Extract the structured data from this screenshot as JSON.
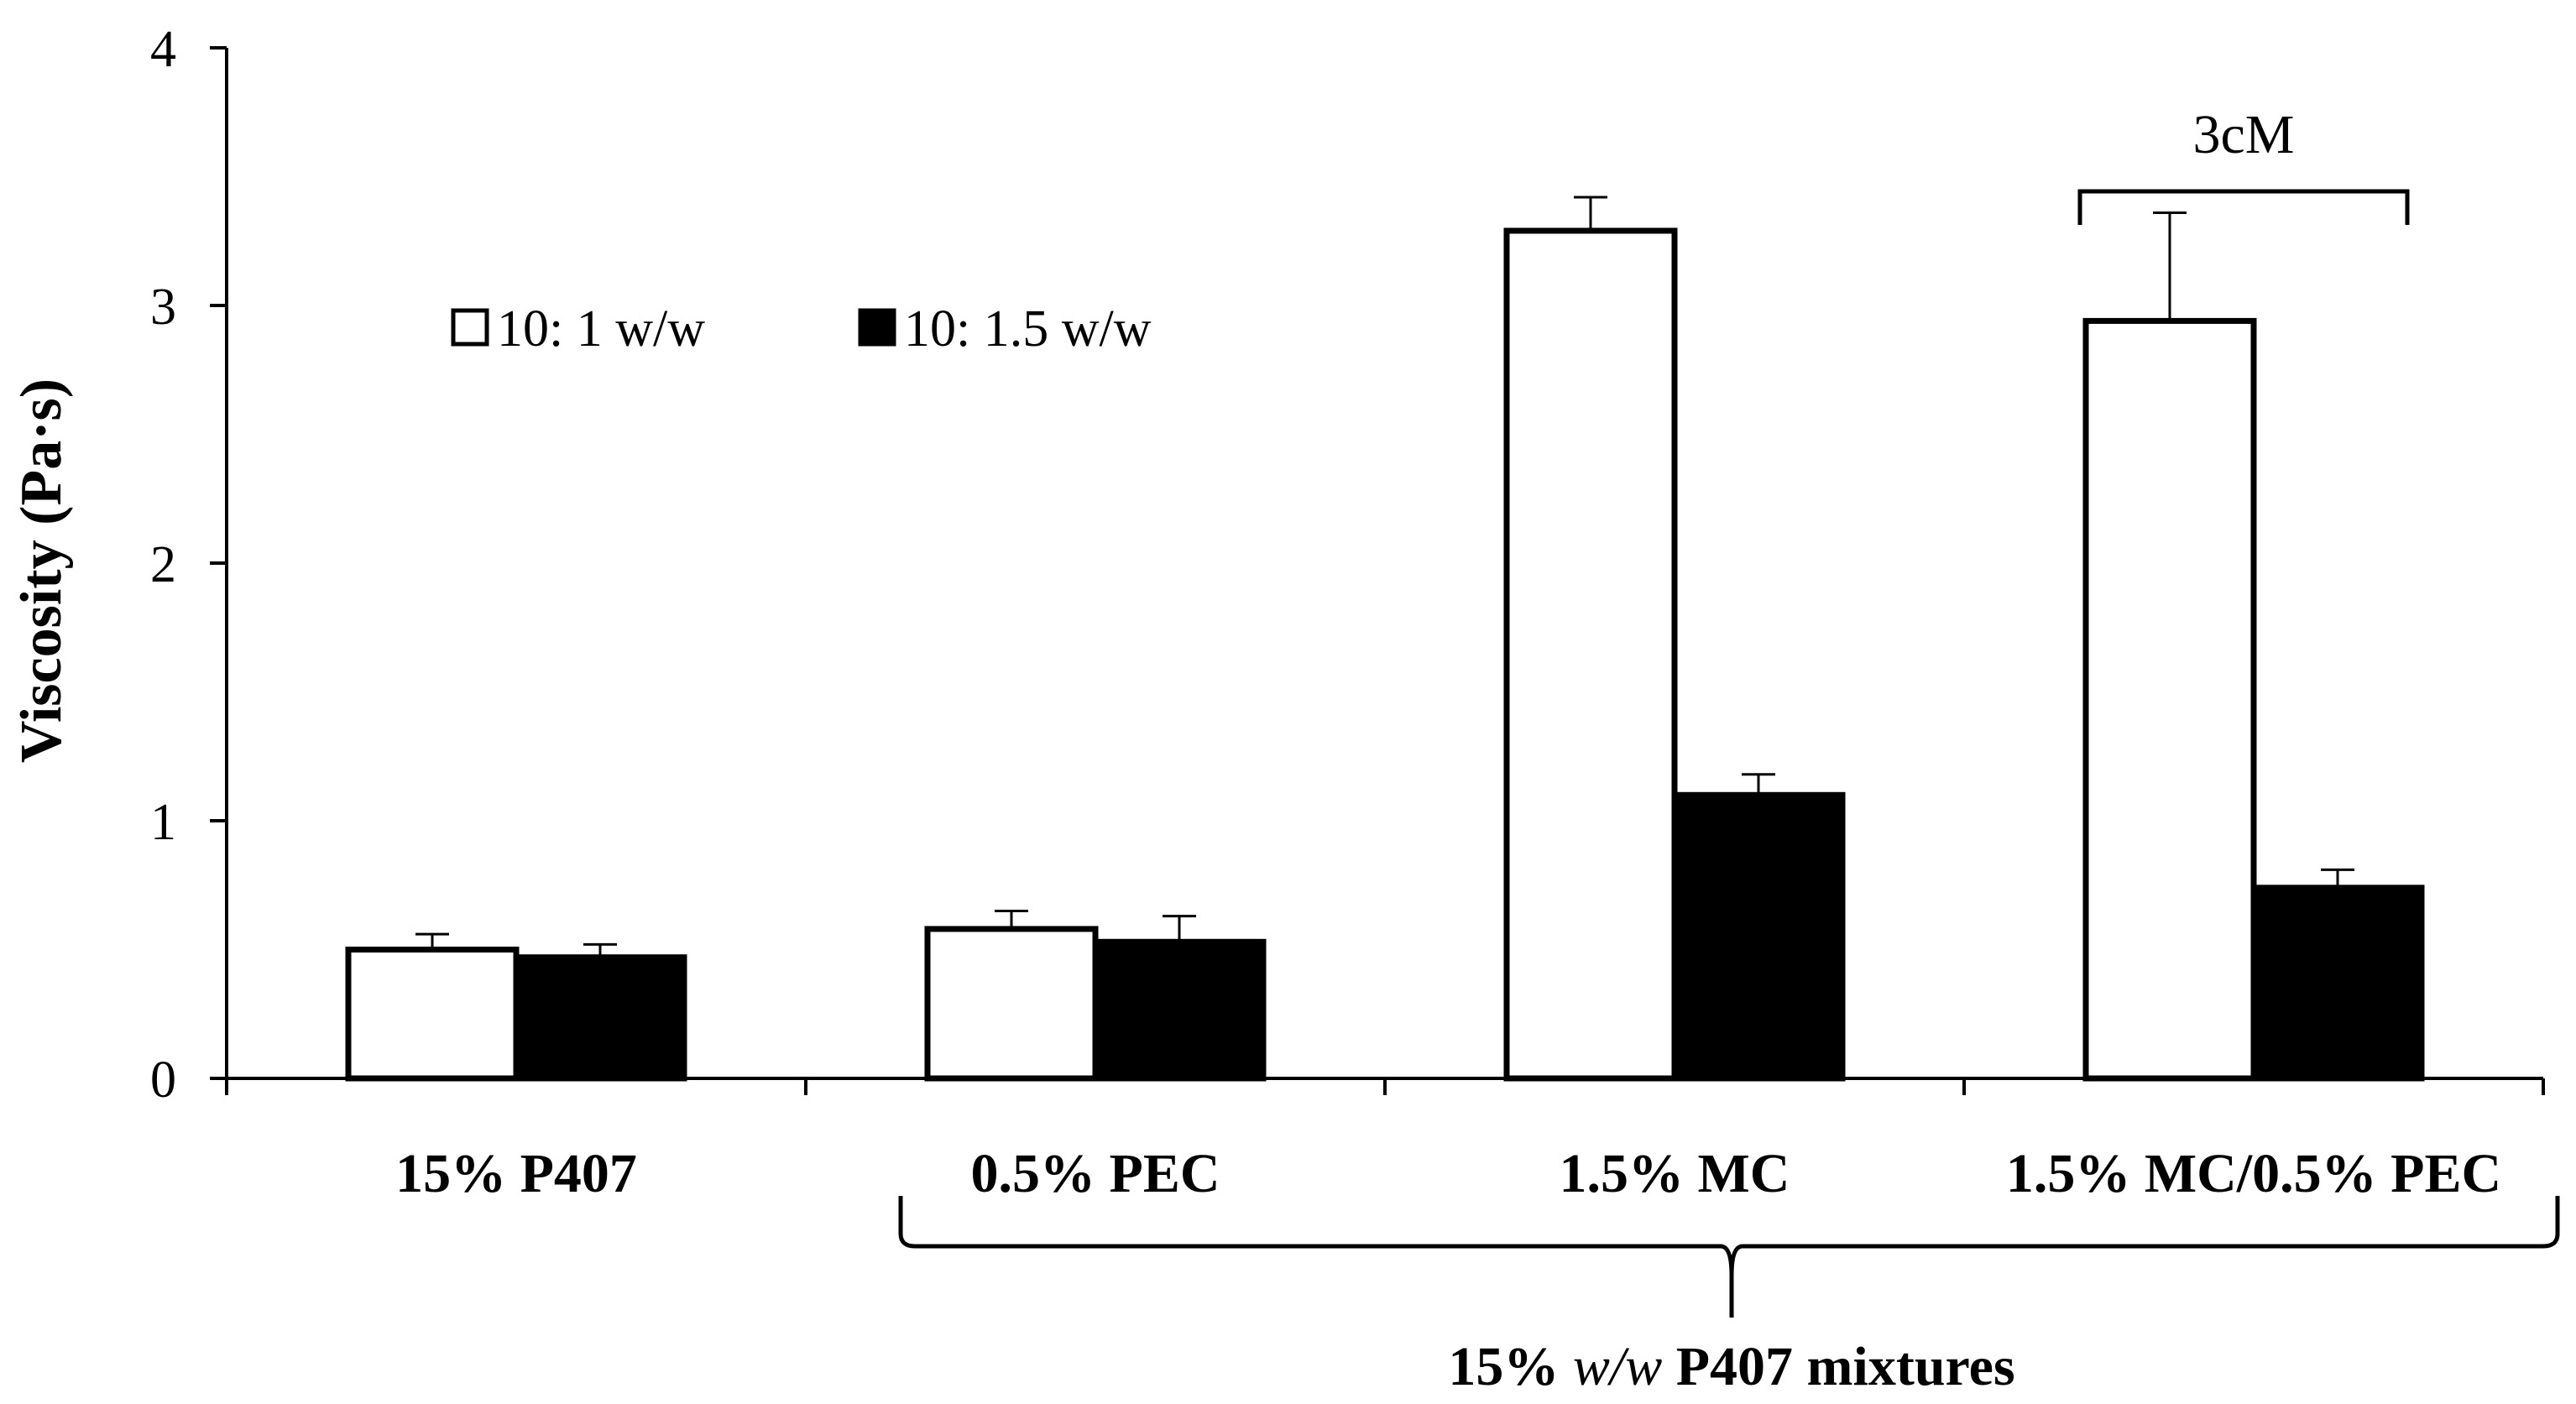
{
  "chart_data": {
    "type": "bar",
    "title": "",
    "xlabel": "",
    "ylabel": "Viscosity (Pa·s)",
    "ylim": [
      0,
      4
    ],
    "yticks": [
      "0",
      "1",
      "2",
      "3",
      "4"
    ],
    "grid": false,
    "legend_position": "top-left",
    "categories": [
      "15% P407",
      "0.5% PEC",
      "1.5% MC",
      "1.5% MC/0.5% PEC"
    ],
    "series": [
      {
        "name": "10: 1 w/w",
        "color": "#ffffff",
        "values": [
          0.5,
          0.58,
          3.29,
          2.94
        ],
        "errors": [
          0.06,
          0.07,
          0.13,
          0.42
        ]
      },
      {
        "name": "10: 1.5 w/w",
        "color": "#000000",
        "values": [
          0.47,
          0.53,
          1.1,
          0.74
        ],
        "errors": [
          0.05,
          0.1,
          0.08,
          0.07
        ]
      }
    ],
    "annotations": {
      "bracket_label": "3cM",
      "group_label_prefix": "15% ",
      "group_label_italic": "w/w",
      "group_label_suffix": " P407 mixtures"
    }
  }
}
